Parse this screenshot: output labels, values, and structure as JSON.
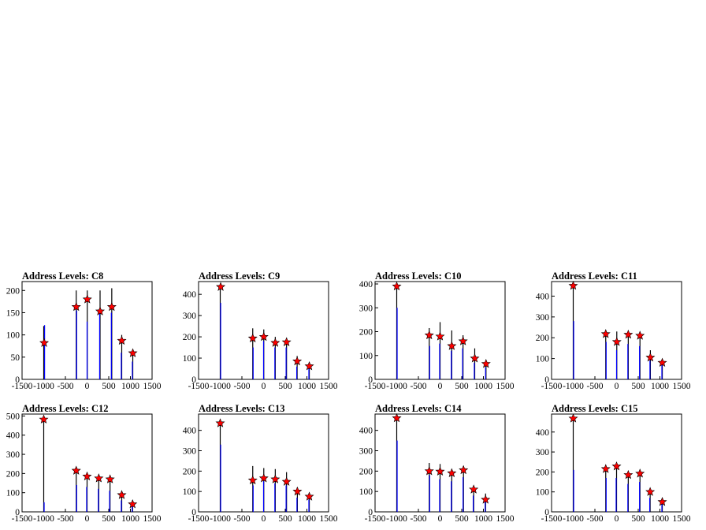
{
  "chart_data": [
    {
      "type": "bar",
      "title": "Address Levels: C8",
      "xlim": [
        -1500,
        1500
      ],
      "ylim": [
        0,
        220
      ],
      "xticks": [
        -1500,
        -1000,
        -500,
        0,
        500,
        1000,
        1500
      ],
      "xtick_labels": [
        "-1500",
        "-1000",
        "-500",
        "0",
        "500",
        "1000",
        "1500"
      ],
      "yticks": [
        0,
        50,
        100,
        150,
        200
      ],
      "ytick_labels": [
        "0",
        "50",
        "100",
        "150",
        "200"
      ],
      "peaks": [
        {
          "x": -990,
          "y": 82
        },
        {
          "x": -250,
          "y": 163
        },
        {
          "x": 5,
          "y": 180
        },
        {
          "x": 300,
          "y": 153
        },
        {
          "x": 570,
          "y": 163
        },
        {
          "x": 800,
          "y": 87
        },
        {
          "x": 1055,
          "y": 59
        }
      ],
      "spikes": [
        [
          -1000,
          120
        ],
        [
          -980,
          122
        ],
        [
          -250,
          200
        ],
        [
          -240,
          155
        ],
        [
          5,
          200
        ],
        [
          0,
          130
        ],
        [
          300,
          200
        ],
        [
          290,
          150
        ],
        [
          570,
          205
        ],
        [
          560,
          150
        ],
        [
          800,
          100
        ],
        [
          790,
          60
        ],
        [
          1055,
          60
        ],
        [
          1045,
          40
        ]
      ]
    },
    {
      "type": "bar",
      "title": "Address Levels: C9",
      "xlim": [
        -1500,
        1500
      ],
      "ylim": [
        0,
        460
      ],
      "xticks": [
        -1500,
        -1000,
        -500,
        0,
        500,
        1000,
        1500
      ],
      "xtick_labels": [
        "-1500",
        "-1000",
        "-500",
        "0",
        "500",
        "1000",
        "1500"
      ],
      "yticks": [
        0,
        100,
        200,
        300,
        400
      ],
      "ytick_labels": [
        "0",
        "100",
        "200",
        "300",
        "400"
      ],
      "peaks": [
        {
          "x": -990,
          "y": 435
        },
        {
          "x": -250,
          "y": 193
        },
        {
          "x": 5,
          "y": 200
        },
        {
          "x": 270,
          "y": 172
        },
        {
          "x": 530,
          "y": 175
        },
        {
          "x": 775,
          "y": 85
        },
        {
          "x": 1055,
          "y": 62
        }
      ],
      "spikes": [
        [
          -1000,
          440
        ],
        [
          -990,
          360
        ],
        [
          -250,
          240
        ],
        [
          -240,
          150
        ],
        [
          5,
          235
        ],
        [
          0,
          180
        ],
        [
          270,
          200
        ],
        [
          260,
          150
        ],
        [
          530,
          195
        ],
        [
          520,
          150
        ],
        [
          775,
          110
        ],
        [
          765,
          60
        ],
        [
          1055,
          75
        ],
        [
          1045,
          50
        ]
      ]
    },
    {
      "type": "bar",
      "title": "Address Levels: C10",
      "xlim": [
        -1500,
        1500
      ],
      "ylim": [
        0,
        410
      ],
      "xticks": [
        -1500,
        -1000,
        -500,
        0,
        500,
        1000,
        1500
      ],
      "xtick_labels": [
        "-1500",
        "-1000",
        "-500",
        "0",
        "500",
        "1000",
        "1500"
      ],
      "yticks": [
        0,
        100,
        200,
        300,
        400
      ],
      "ytick_labels": [
        "0",
        "100",
        "200",
        "300",
        "400"
      ],
      "peaks": [
        {
          "x": -1000,
          "y": 390
        },
        {
          "x": -250,
          "y": 185
        },
        {
          "x": 0,
          "y": 180
        },
        {
          "x": 270,
          "y": 140
        },
        {
          "x": 530,
          "y": 160
        },
        {
          "x": 800,
          "y": 88
        },
        {
          "x": 1060,
          "y": 65
        }
      ],
      "spikes": [
        [
          -1000,
          400
        ],
        [
          -990,
          300
        ],
        [
          -250,
          215
        ],
        [
          -240,
          140
        ],
        [
          0,
          240
        ],
        [
          -10,
          150
        ],
        [
          270,
          205
        ],
        [
          260,
          120
        ],
        [
          530,
          185
        ],
        [
          520,
          130
        ],
        [
          800,
          130
        ],
        [
          790,
          70
        ],
        [
          1060,
          70
        ],
        [
          1050,
          50
        ]
      ]
    },
    {
      "type": "bar",
      "title": "Address Levels: C11",
      "xlim": [
        -1500,
        1500
      ],
      "ylim": [
        0,
        470
      ],
      "xticks": [
        -1500,
        -1000,
        -500,
        0,
        500,
        1000,
        1500
      ],
      "xtick_labels": [
        "-1500",
        "-1000",
        "-500",
        "0",
        "500",
        "1000",
        "1500"
      ],
      "yticks": [
        0,
        100,
        200,
        300,
        400
      ],
      "ytick_labels": [
        "0",
        "100",
        "200",
        "300",
        "400"
      ],
      "peaks": [
        {
          "x": -1000,
          "y": 450
        },
        {
          "x": -250,
          "y": 218
        },
        {
          "x": 5,
          "y": 180
        },
        {
          "x": 270,
          "y": 215
        },
        {
          "x": 540,
          "y": 210
        },
        {
          "x": 780,
          "y": 105
        },
        {
          "x": 1055,
          "y": 80
        }
      ],
      "spikes": [
        [
          -1000,
          455
        ],
        [
          -990,
          280
        ],
        [
          -250,
          225
        ],
        [
          -240,
          180
        ],
        [
          5,
          230
        ],
        [
          0,
          140
        ],
        [
          270,
          225
        ],
        [
          260,
          170
        ],
        [
          540,
          220
        ],
        [
          530,
          160
        ],
        [
          780,
          140
        ],
        [
          770,
          90
        ],
        [
          1055,
          95
        ],
        [
          1045,
          70
        ]
      ]
    },
    {
      "type": "bar",
      "title": "Address Levels: C12",
      "xlim": [
        -1500,
        1500
      ],
      "ylim": [
        0,
        510
      ],
      "xticks": [
        -1500,
        -1000,
        -500,
        0,
        500,
        1000,
        1500
      ],
      "xtick_labels": [
        "-1500",
        "-1000",
        "-500",
        "0",
        "500",
        "1000",
        "1500"
      ],
      "yticks": [
        0,
        100,
        200,
        300,
        400,
        500
      ],
      "ytick_labels": [
        "0",
        "100",
        "200",
        "300",
        "400",
        "500"
      ],
      "peaks": [
        {
          "x": -1000,
          "y": 482
        },
        {
          "x": -250,
          "y": 215
        },
        {
          "x": 0,
          "y": 185
        },
        {
          "x": 270,
          "y": 175
        },
        {
          "x": 530,
          "y": 170
        },
        {
          "x": 800,
          "y": 88
        },
        {
          "x": 1050,
          "y": 40
        }
      ],
      "spikes": [
        [
          -1000,
          490
        ],
        [
          -990,
          50
        ],
        [
          -250,
          230
        ],
        [
          -240,
          140
        ],
        [
          0,
          200
        ],
        [
          -10,
          130
        ],
        [
          270,
          185
        ],
        [
          260,
          120
        ],
        [
          530,
          185
        ],
        [
          520,
          110
        ],
        [
          800,
          95
        ],
        [
          790,
          60
        ],
        [
          1050,
          60
        ],
        [
          1040,
          30
        ]
      ]
    },
    {
      "type": "bar",
      "title": "Address Levels: C13",
      "xlim": [
        -1500,
        1500
      ],
      "ylim": [
        0,
        480
      ],
      "xticks": [
        -1500,
        -1000,
        -500,
        0,
        500,
        1000,
        1500
      ],
      "xtick_labels": [
        "-1500",
        "-1000",
        "-500",
        "0",
        "500",
        "1000",
        "1500"
      ],
      "yticks": [
        0,
        100,
        200,
        300,
        400
      ],
      "ytick_labels": [
        "0",
        "100",
        "200",
        "300",
        "400"
      ],
      "peaks": [
        {
          "x": -1000,
          "y": 435
        },
        {
          "x": -250,
          "y": 155
        },
        {
          "x": 5,
          "y": 165
        },
        {
          "x": 270,
          "y": 160
        },
        {
          "x": 530,
          "y": 148
        },
        {
          "x": 780,
          "y": 100
        },
        {
          "x": 1055,
          "y": 75
        }
      ],
      "spikes": [
        [
          -1000,
          440
        ],
        [
          -990,
          330
        ],
        [
          -250,
          225
        ],
        [
          -240,
          130
        ],
        [
          5,
          215
        ],
        [
          0,
          150
        ],
        [
          270,
          210
        ],
        [
          260,
          140
        ],
        [
          530,
          195
        ],
        [
          520,
          130
        ],
        [
          780,
          120
        ],
        [
          770,
          70
        ],
        [
          1055,
          85
        ],
        [
          1045,
          60
        ]
      ]
    },
    {
      "type": "bar",
      "title": "Address Levels: C14",
      "xlim": [
        -1500,
        1500
      ],
      "ylim": [
        0,
        480
      ],
      "xticks": [
        -1500,
        -1000,
        -500,
        0,
        500,
        1000,
        1500
      ],
      "xtick_labels": [
        "-1500",
        "-1000",
        "-500",
        "0",
        "500",
        "1000",
        "1500"
      ],
      "yticks": [
        0,
        100,
        200,
        300,
        400
      ],
      "ytick_labels": [
        "0",
        "100",
        "200",
        "300",
        "400"
      ],
      "peaks": [
        {
          "x": -1000,
          "y": 460
        },
        {
          "x": -250,
          "y": 200
        },
        {
          "x": 0,
          "y": 198
        },
        {
          "x": 270,
          "y": 190
        },
        {
          "x": 540,
          "y": 205
        },
        {
          "x": 775,
          "y": 110
        },
        {
          "x": 1050,
          "y": 60
        }
      ],
      "spikes": [
        [
          -1000,
          465
        ],
        [
          -990,
          350
        ],
        [
          -250,
          240
        ],
        [
          -240,
          180
        ],
        [
          0,
          235
        ],
        [
          -10,
          160
        ],
        [
          270,
          210
        ],
        [
          260,
          150
        ],
        [
          540,
          225
        ],
        [
          530,
          170
        ],
        [
          775,
          120
        ],
        [
          765,
          80
        ],
        [
          1050,
          90
        ],
        [
          1040,
          50
        ]
      ]
    },
    {
      "type": "bar",
      "title": "Address Levels: C15",
      "xlim": [
        -1500,
        1500
      ],
      "ylim": [
        0,
        490
      ],
      "xticks": [
        -1500,
        -1000,
        -500,
        0,
        500,
        1000,
        1500
      ],
      "xtick_labels": [
        "-1500",
        "-1000",
        "-500",
        "0",
        "500",
        "1000",
        "1500"
      ],
      "yticks": [
        0,
        100,
        200,
        300,
        400
      ],
      "ytick_labels": [
        "0",
        "100",
        "200",
        "300",
        "400"
      ],
      "peaks": [
        {
          "x": -1000,
          "y": 468
        },
        {
          "x": -250,
          "y": 215
        },
        {
          "x": 0,
          "y": 228
        },
        {
          "x": 270,
          "y": 185
        },
        {
          "x": 540,
          "y": 192
        },
        {
          "x": 775,
          "y": 100
        },
        {
          "x": 1055,
          "y": 50
        }
      ],
      "spikes": [
        [
          -1000,
          475
        ],
        [
          -990,
          210
        ],
        [
          -250,
          220
        ],
        [
          -240,
          170
        ],
        [
          0,
          235
        ],
        [
          -10,
          170
        ],
        [
          270,
          195
        ],
        [
          260,
          140
        ],
        [
          540,
          200
        ],
        [
          530,
          150
        ],
        [
          775,
          110
        ],
        [
          765,
          70
        ],
        [
          1055,
          65
        ],
        [
          1045,
          40
        ]
      ]
    }
  ],
  "style": {
    "peak_marker": "star",
    "peak_color": "#ff0000",
    "spike_colors": [
      "#000000",
      "#0000ff"
    ],
    "axis_color": "#000000",
    "background": "#ffffff"
  }
}
